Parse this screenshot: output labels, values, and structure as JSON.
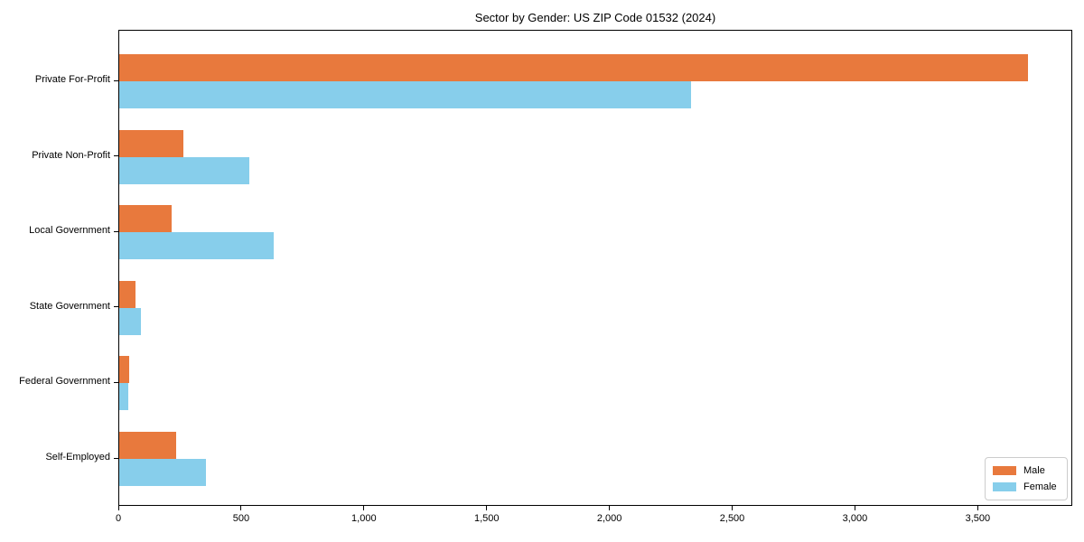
{
  "chart_data": {
    "type": "bar",
    "orientation": "horizontal",
    "title": "Sector by Gender: US ZIP Code 01532 (2024)",
    "xlabel": "",
    "ylabel": "",
    "categories": [
      "Private For-Profit",
      "Private Non-Profit",
      "Local Government",
      "State Government",
      "Federal Government",
      "Self-Employed"
    ],
    "series": [
      {
        "name": "Male",
        "color": "#E8793D",
        "values": [
          3700,
          260,
          215,
          65,
          40,
          230
        ]
      },
      {
        "name": "Female",
        "color": "#87CEEB",
        "values": [
          2330,
          530,
          630,
          90,
          35,
          355
        ]
      }
    ],
    "xlim": [
      0,
      3885
    ],
    "xticks": [
      0,
      500,
      1000,
      1500,
      2000,
      2500,
      3000,
      3500
    ],
    "xtick_labels": [
      "0",
      "500",
      "1,000",
      "1,500",
      "2,000",
      "2,500",
      "3,000",
      "3,500"
    ],
    "grid": false,
    "legend": {
      "position": "lower right",
      "entries": [
        "Male",
        "Female"
      ]
    }
  }
}
